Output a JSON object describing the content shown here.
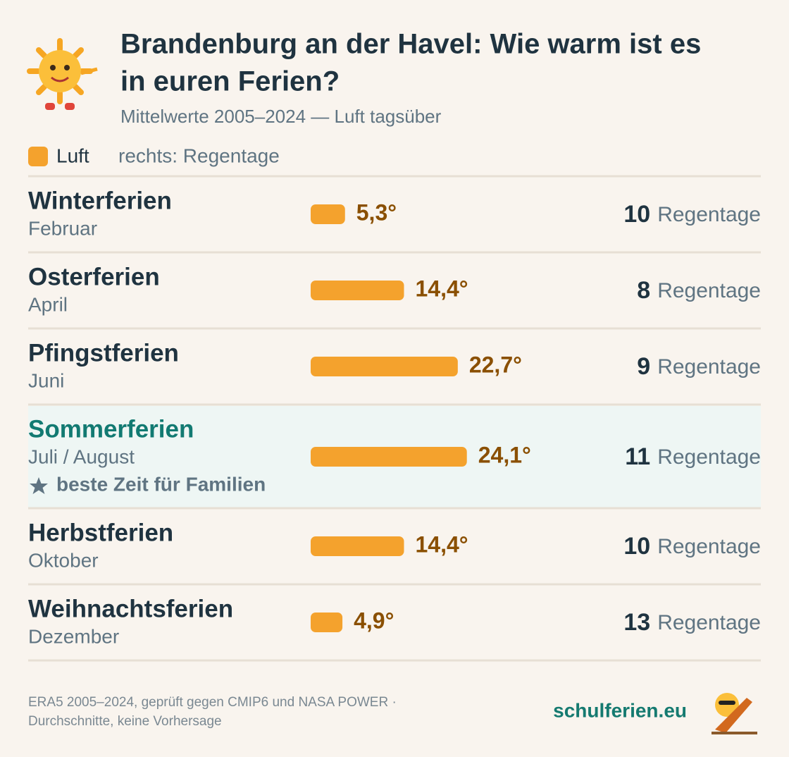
{
  "chart_data": {
    "type": "bar",
    "title_lines": [
      "Brandenburg an der Havel: Wie warm ist es",
      "in euren Ferien?"
    ],
    "subtitle": "Mittelwerte 2005–2024 — Luft tagsüber",
    "legend": "Luft",
    "legend_note": "rechts: Regentage",
    "color": "#f4a22d",
    "categories": [
      "Winterferien",
      "Osterferien",
      "Pfingstferien",
      "Sommerferien",
      "Herbstferien",
      "Weihnachtsferien"
    ],
    "months": [
      "Februar",
      "April",
      "Juni",
      "Juli / August",
      "Oktober",
      "Dezember"
    ],
    "values": [
      5.3,
      14.4,
      22.7,
      24.1,
      14.4,
      4.9
    ],
    "value_labels": [
      "5,3°",
      "14,4°",
      "22,7°",
      "24,1°",
      "14,4°",
      "4,9°"
    ],
    "rain_days": [
      10,
      8,
      9,
      11,
      10,
      13
    ],
    "rain_label": "Regentage",
    "highlight_index": 3,
    "highlight_note": "beste Zeit für Familien",
    "footer_lines": [
      "ERA5 2005–2024, geprüft gegen CMIP6 und NASA POWER ·",
      "Durchschnitte, keine Vorhersage"
    ],
    "brand": "schulferien.eu"
  }
}
